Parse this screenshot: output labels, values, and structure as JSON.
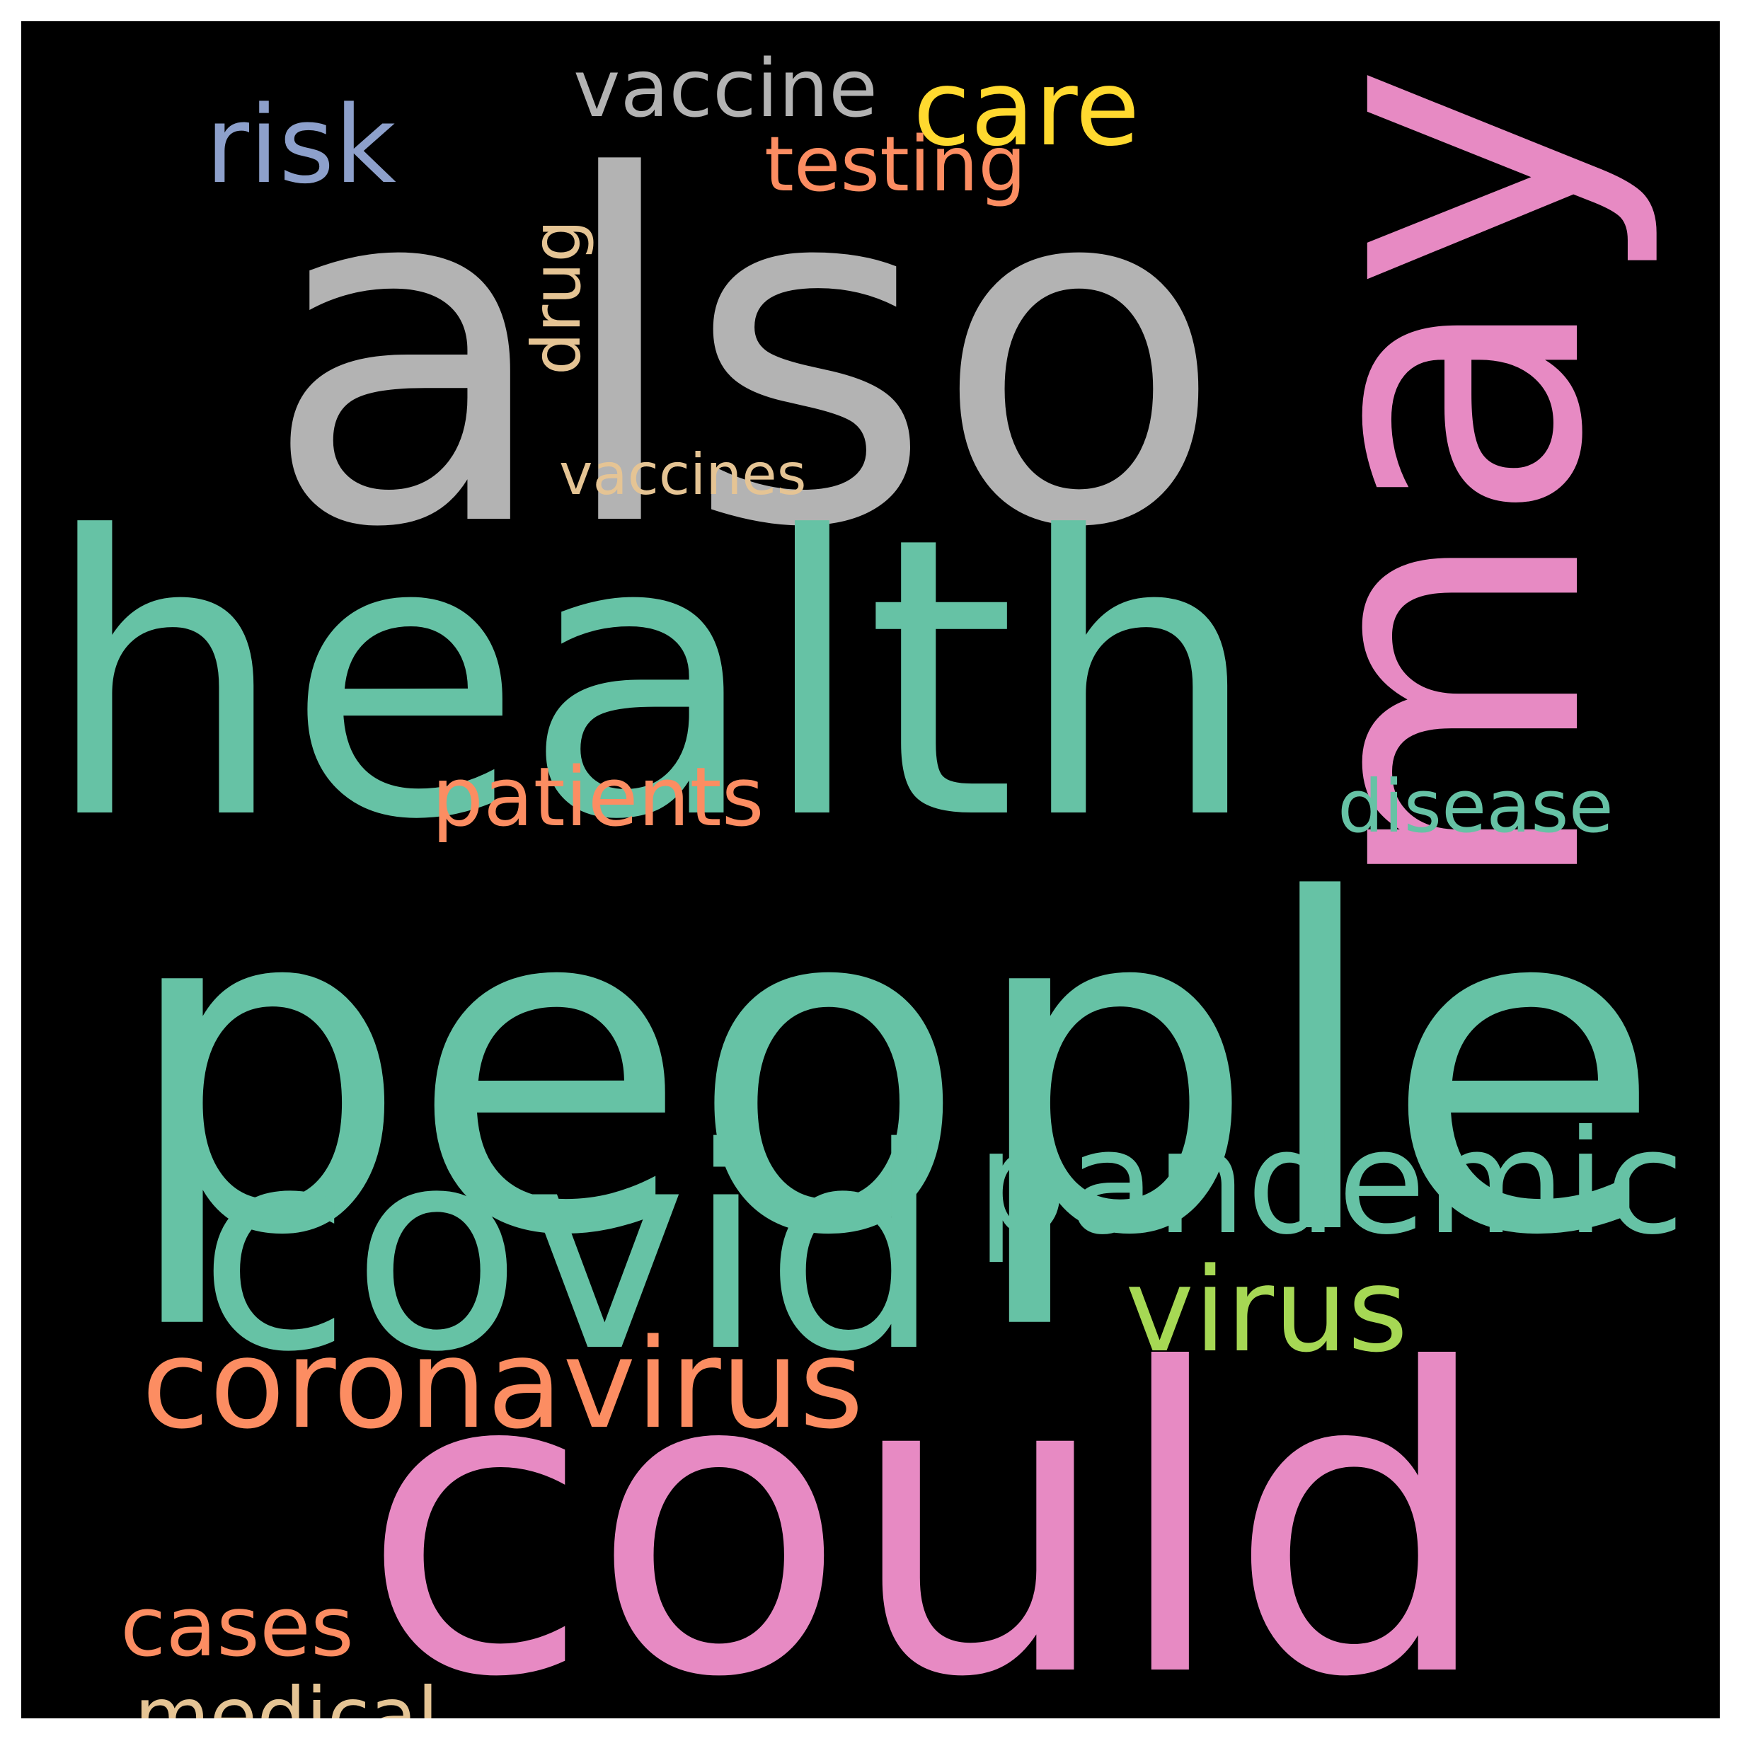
{
  "colors": {
    "background": "#000000",
    "frame": "#ffffff"
  },
  "words": [
    {
      "text": "people",
      "color": "#66c2a5",
      "vertical": false
    },
    {
      "text": "also",
      "color": "#b3b3b3",
      "vertical": false
    },
    {
      "text": "health",
      "color": "#66c2a5",
      "vertical": false
    },
    {
      "text": "could",
      "color": "#e78ac3",
      "vertical": false
    },
    {
      "text": "may",
      "color": "#e78ac3",
      "vertical": true
    },
    {
      "text": "covid",
      "color": "#66c2a5",
      "vertical": false
    },
    {
      "text": "pandemic",
      "color": "#66c2a5",
      "vertical": false
    },
    {
      "text": "coronavirus",
      "color": "#fc8d62",
      "vertical": false
    },
    {
      "text": "virus",
      "color": "#a6d854",
      "vertical": false
    },
    {
      "text": "care",
      "color": "#ffd92f",
      "vertical": false
    },
    {
      "text": "patients",
      "color": "#fc8d62",
      "vertical": false
    },
    {
      "text": "disease",
      "color": "#66c2a5",
      "vertical": false
    },
    {
      "text": "vaccine",
      "color": "#b3b3b3",
      "vertical": false
    },
    {
      "text": "risk",
      "color": "#8da0cb",
      "vertical": false
    },
    {
      "text": "cases",
      "color": "#fc8d62",
      "vertical": false
    },
    {
      "text": "medical",
      "color": "#e5c494",
      "vertical": false
    },
    {
      "text": "testing",
      "color": "#fc8d62",
      "vertical": false
    },
    {
      "text": "drug",
      "color": "#e5c494",
      "vertical": true
    },
    {
      "text": "vaccines",
      "color": "#e5c494",
      "vertical": false
    }
  ]
}
